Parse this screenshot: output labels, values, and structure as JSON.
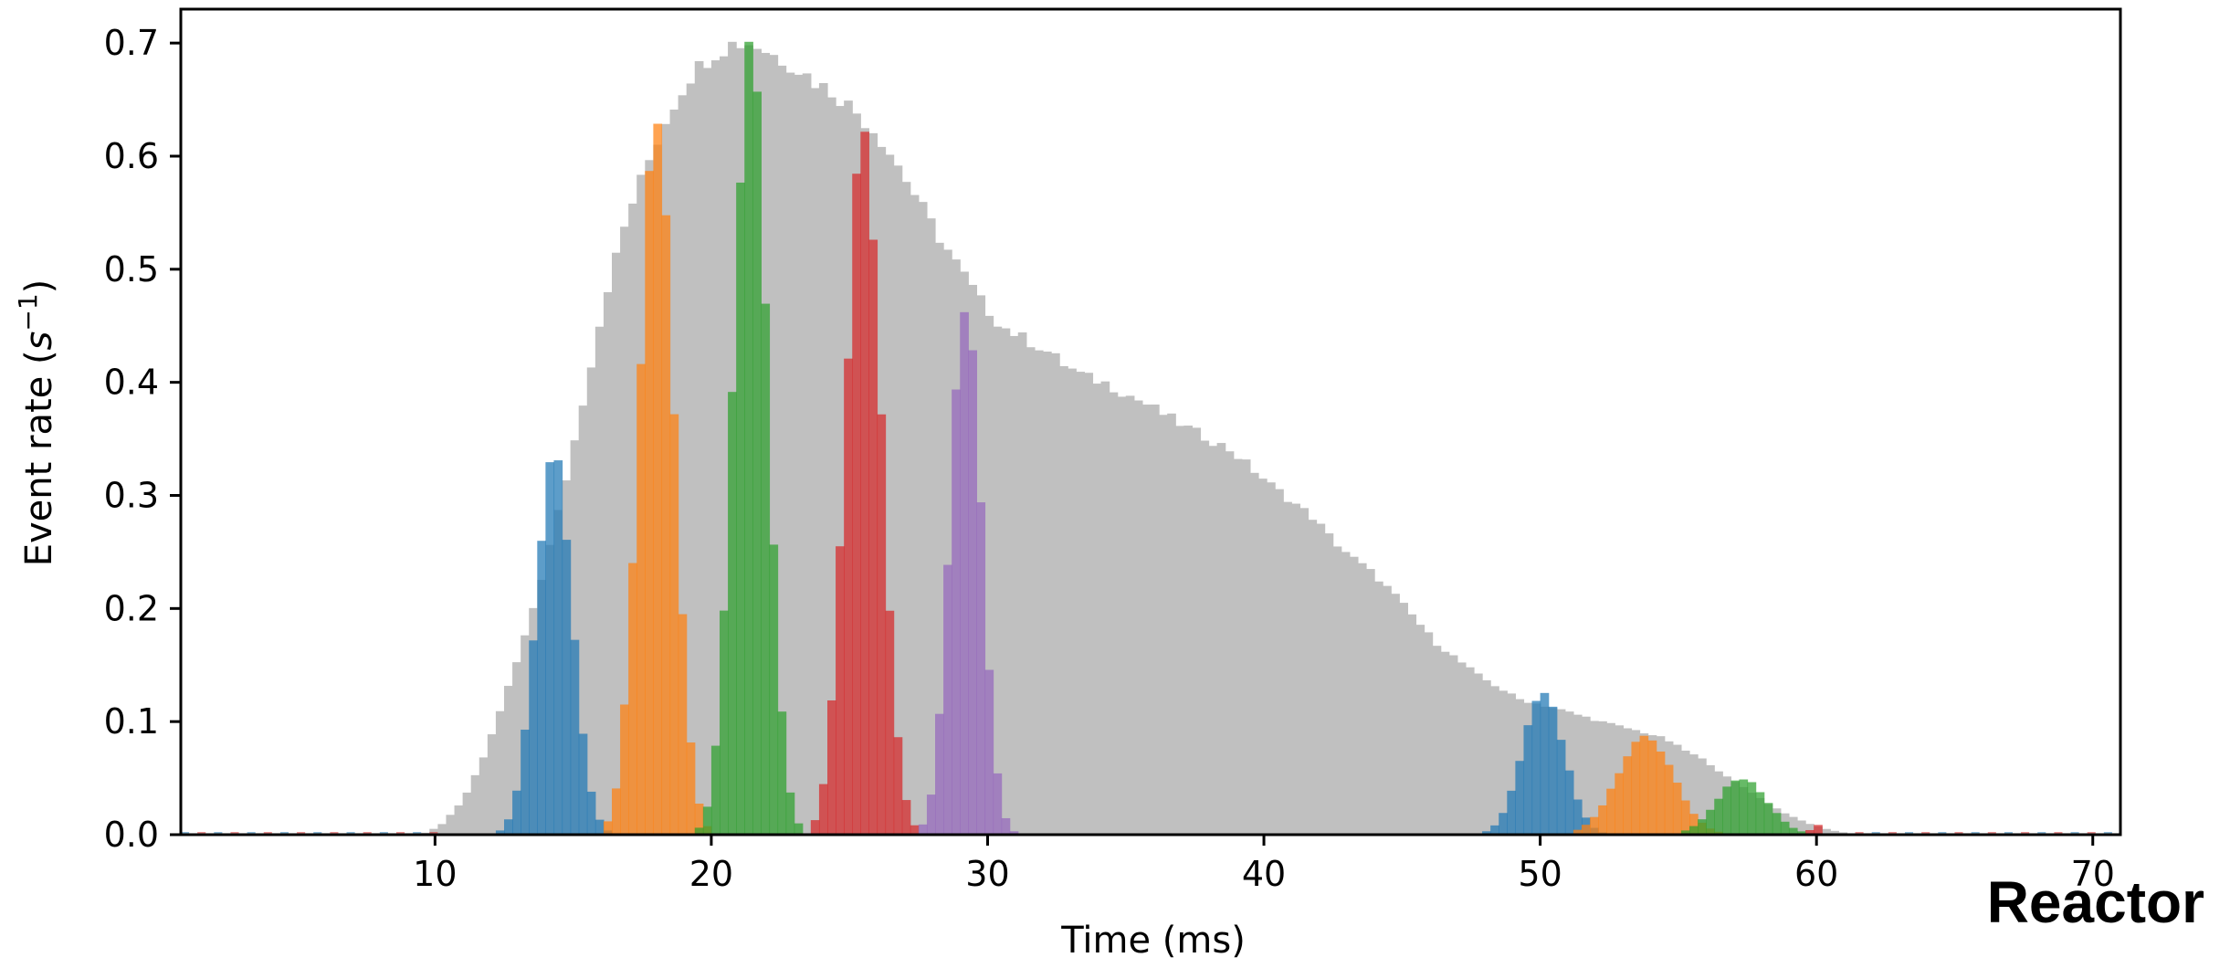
{
  "chart_data": {
    "type": "bar",
    "xlabel": "Time (ms)",
    "ylabel_main": "Event rate (",
    "ylabel_var": "s",
    "ylabel_sup": "−1",
    "ylabel_end": ")",
    "corner_label": "Reactor",
    "xlim": [
      0.8,
      71
    ],
    "ylim": [
      0,
      0.73
    ],
    "xticks": [
      10,
      20,
      30,
      40,
      50,
      60,
      70
    ],
    "yticks": [
      0.0,
      0.1,
      0.2,
      0.3,
      0.4,
      0.5,
      0.6,
      0.7
    ],
    "ytick_labels": [
      "0.0",
      "0.1",
      "0.2",
      "0.3",
      "0.4",
      "0.5",
      "0.6",
      "0.7"
    ],
    "bin_width": 0.3,
    "colors": {
      "total": "#c0c0c0",
      "blue": "#1f77b4",
      "orange": "#ff7f0e",
      "green": "#2ca02c",
      "red": "#d62728",
      "purple": "#9467bd"
    },
    "total_envelope": [
      [
        0.8,
        0.0
      ],
      [
        9.5,
        0.0
      ],
      [
        10.2,
        0.008
      ],
      [
        11.0,
        0.03
      ],
      [
        11.8,
        0.07
      ],
      [
        12.5,
        0.12
      ],
      [
        13.2,
        0.17
      ],
      [
        14.0,
        0.24
      ],
      [
        14.8,
        0.32
      ],
      [
        15.5,
        0.4
      ],
      [
        16.2,
        0.48
      ],
      [
        17.0,
        0.55
      ],
      [
        17.8,
        0.6
      ],
      [
        18.5,
        0.64
      ],
      [
        19.2,
        0.67
      ],
      [
        20.0,
        0.69
      ],
      [
        20.8,
        0.7
      ],
      [
        21.5,
        0.7
      ],
      [
        22.2,
        0.69
      ],
      [
        23.0,
        0.68
      ],
      [
        23.8,
        0.665
      ],
      [
        24.5,
        0.655
      ],
      [
        25.2,
        0.64
      ],
      [
        26.0,
        0.62
      ],
      [
        26.8,
        0.59
      ],
      [
        27.5,
        0.56
      ],
      [
        28.2,
        0.53
      ],
      [
        29.0,
        0.5
      ],
      [
        29.8,
        0.47
      ],
      [
        30.5,
        0.45
      ],
      [
        31.2,
        0.44
      ],
      [
        32.0,
        0.43
      ],
      [
        32.8,
        0.415
      ],
      [
        33.5,
        0.405
      ],
      [
        34.2,
        0.4
      ],
      [
        35.0,
        0.39
      ],
      [
        35.8,
        0.38
      ],
      [
        36.5,
        0.37
      ],
      [
        37.2,
        0.36
      ],
      [
        38.0,
        0.35
      ],
      [
        38.8,
        0.34
      ],
      [
        39.5,
        0.325
      ],
      [
        40.2,
        0.31
      ],
      [
        41.0,
        0.295
      ],
      [
        41.8,
        0.28
      ],
      [
        42.5,
        0.26
      ],
      [
        43.2,
        0.245
      ],
      [
        44.0,
        0.23
      ],
      [
        44.8,
        0.21
      ],
      [
        45.5,
        0.19
      ],
      [
        46.2,
        0.17
      ],
      [
        47.0,
        0.155
      ],
      [
        47.8,
        0.14
      ],
      [
        48.5,
        0.13
      ],
      [
        49.2,
        0.12
      ],
      [
        50.0,
        0.115
      ],
      [
        50.8,
        0.11
      ],
      [
        51.5,
        0.105
      ],
      [
        52.2,
        0.1
      ],
      [
        53.0,
        0.095
      ],
      [
        53.8,
        0.09
      ],
      [
        54.5,
        0.085
      ],
      [
        55.2,
        0.075
      ],
      [
        56.0,
        0.065
      ],
      [
        56.8,
        0.05
      ],
      [
        57.5,
        0.04
      ],
      [
        58.2,
        0.028
      ],
      [
        59.0,
        0.017
      ],
      [
        59.8,
        0.009
      ],
      [
        60.5,
        0.004
      ],
      [
        61.2,
        0.001
      ],
      [
        62.0,
        0.0
      ],
      [
        71.0,
        0.0
      ]
    ],
    "peaks": [
      {
        "color": "blue",
        "center": 14.3,
        "sigma": 0.65,
        "peak": 0.335
      },
      {
        "color": "orange",
        "center": 18.0,
        "sigma": 0.62,
        "peak": 0.63
      },
      {
        "color": "green",
        "center": 21.4,
        "sigma": 0.6,
        "peak": 0.7
      },
      {
        "color": "red",
        "center": 25.5,
        "sigma": 0.63,
        "peak": 0.62
      },
      {
        "color": "purple",
        "center": 29.2,
        "sigma": 0.55,
        "peak": 0.475
      },
      {
        "color": "blue",
        "center": 50.1,
        "sigma": 0.75,
        "peak": 0.125
      },
      {
        "color": "orange",
        "center": 53.8,
        "sigma": 1.0,
        "peak": 0.087
      },
      {
        "color": "green",
        "center": 57.3,
        "sigma": 0.9,
        "peak": 0.05
      },
      {
        "color": "red",
        "center": 60.0,
        "sigma": 0.2,
        "peak": 0.009
      }
    ]
  }
}
